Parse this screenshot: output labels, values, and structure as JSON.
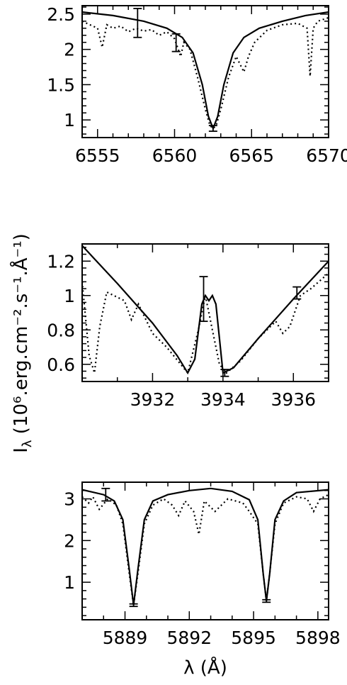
{
  "ylabel_shared": "Iλ (10⁶.erg.cm⁻².s⁻¹.Å⁻¹)",
  "chart_data": [
    {
      "type": "line",
      "title": "",
      "xlabel": "",
      "ylabel": "",
      "xlim": [
        6554,
        6570
      ],
      "ylim": [
        0.75,
        2.62
      ],
      "xticks": [
        6555,
        6560,
        6565,
        6570
      ],
      "yticks": [
        1,
        1.5,
        2,
        2.5
      ],
      "xtick_labels": [
        "6555",
        "6560",
        "6565",
        "6570"
      ],
      "ytick_labels": [
        "1",
        "1.5",
        "2",
        "2.5"
      ],
      "series": [
        {
          "style": "solid",
          "x": [
            6554,
            6556,
            6558,
            6559.5,
            6560.5,
            6561.2,
            6561.8,
            6562.2,
            6562.5,
            6562.8,
            6563.2,
            6563.8,
            6564.5,
            6565.5,
            6567,
            6568.5,
            6570
          ],
          "y": [
            2.53,
            2.48,
            2.4,
            2.3,
            2.17,
            1.95,
            1.5,
            1.05,
            0.88,
            1.05,
            1.5,
            1.95,
            2.17,
            2.3,
            2.4,
            2.48,
            2.53
          ]
        },
        {
          "style": "dotted",
          "x": [
            6554,
            6554.5,
            6555,
            6555.3,
            6555.6,
            6556,
            6556.5,
            6557,
            6557.5,
            6558,
            6558.5,
            6559,
            6559.5,
            6560,
            6560.4,
            6560.6,
            6561,
            6561.5,
            6562,
            6562.3,
            6562.5,
            6562.7,
            6563,
            6563.5,
            6564,
            6564.5,
            6564.8,
            6565.2,
            6566,
            6567,
            6568,
            6568.6,
            6568.8,
            6569,
            6569.3,
            6570
          ],
          "y": [
            2.4,
            2.35,
            2.3,
            2.03,
            2.35,
            2.3,
            2.33,
            2.25,
            2.3,
            2.26,
            2.28,
            2.2,
            2.25,
            2.15,
            1.9,
            2.1,
            2.0,
            1.6,
            1.15,
            0.92,
            0.88,
            0.92,
            1.15,
            1.6,
            1.9,
            1.68,
            1.9,
            2.1,
            2.27,
            2.35,
            2.37,
            2.3,
            1.62,
            2.3,
            2.4,
            2.45
          ]
        }
      ],
      "errorbars": [
        {
          "x": 6557.6,
          "y": 2.37,
          "low": 2.17,
          "high": 2.58
        },
        {
          "x": 6560.1,
          "y": 2.1,
          "low": 1.97,
          "high": 2.22
        },
        {
          "x": 6562.5,
          "y": 0.88,
          "low": 0.84,
          "high": 0.92
        }
      ]
    },
    {
      "type": "line",
      "title": "",
      "xlabel": "",
      "ylabel": "",
      "xlim": [
        3930,
        3937
      ],
      "ylim": [
        0.5,
        1.3
      ],
      "xticks": [
        3932,
        3934,
        3936
      ],
      "yticks": [
        0.6,
        0.8,
        1,
        1.2
      ],
      "xtick_labels": [
        "3932",
        "3934",
        "3936"
      ],
      "ytick_labels": [
        "0.6",
        "0.8",
        "1",
        "1.2"
      ],
      "series": [
        {
          "style": "solid",
          "x": [
            3930,
            3931,
            3932,
            3932.7,
            3933.0,
            3933.2,
            3933.4,
            3933.5,
            3933.6,
            3933.7,
            3933.8,
            3934.0,
            3934.3,
            3935,
            3936,
            3937
          ],
          "y": [
            1.29,
            1.07,
            0.84,
            0.65,
            0.55,
            0.63,
            0.95,
            1.0,
            0.97,
            1.0,
            0.95,
            0.55,
            0.58,
            0.75,
            0.98,
            1.2
          ],
          "note_unused": ""
        },
        {
          "style": "dotted",
          "x": [
            3930,
            3930.2,
            3930.35,
            3930.5,
            3930.7,
            3930.9,
            3931.2,
            3931.4,
            3931.6,
            3932,
            3932.4,
            3932.8,
            3933.0,
            3933.3,
            3933.5,
            3933.7,
            3933.9,
            3934.1,
            3934.5,
            3935,
            3935.5,
            3935.7,
            3935.9,
            3936.2,
            3936.5,
            3937
          ],
          "y": [
            1.08,
            0.65,
            0.55,
            0.82,
            1.02,
            1.0,
            0.97,
            0.86,
            0.95,
            0.78,
            0.7,
            0.6,
            0.55,
            0.8,
            1.0,
            0.8,
            0.6,
            0.55,
            0.62,
            0.75,
            0.85,
            0.78,
            0.82,
            1.0,
            1.04,
            1.13
          ]
        }
      ],
      "errorbars": [
        {
          "x": 3933.45,
          "y": 0.98,
          "low": 0.85,
          "high": 1.11
        },
        {
          "x": 3934.05,
          "y": 0.55,
          "low": 0.53,
          "high": 0.57
        },
        {
          "x": 3936.1,
          "y": 1.01,
          "low": 0.98,
          "high": 1.05
        }
      ]
    },
    {
      "type": "line",
      "title": "",
      "xlabel": "λ (Å)",
      "ylabel": "",
      "xlim": [
        5887,
        5898.5
      ],
      "ylim": [
        0.1,
        3.4
      ],
      "xticks": [
        5889,
        5892,
        5895,
        5898
      ],
      "yticks": [
        1,
        2,
        3
      ],
      "xtick_labels": [
        "5889",
        "5892",
        "5895",
        "5898"
      ],
      "ytick_labels": [
        "1",
        "2",
        "3"
      ],
      "series": [
        {
          "style": "solid",
          "x": [
            5887,
            5888,
            5888.5,
            5888.9,
            5889.2,
            5889.4,
            5889.6,
            5889.9,
            5890.3,
            5891,
            5892,
            5893,
            5894,
            5894.8,
            5895.2,
            5895.45,
            5895.6,
            5895.75,
            5896,
            5896.4,
            5897,
            5898.5
          ],
          "y": [
            3.22,
            3.1,
            2.95,
            2.5,
            1.3,
            0.45,
            1.3,
            2.5,
            2.95,
            3.1,
            3.2,
            3.25,
            3.18,
            2.98,
            2.5,
            1.2,
            0.55,
            1.2,
            2.5,
            2.95,
            3.15,
            3.22
          ],
          "note_unused": ""
        },
        {
          "style": "dotted",
          "x": [
            5887,
            5887.3,
            5887.5,
            5887.8,
            5888.2,
            5888.6,
            5888.9,
            5889.2,
            5889.4,
            5889.6,
            5889.9,
            5890.3,
            5890.8,
            5891.2,
            5891.5,
            5891.8,
            5892.2,
            5892.45,
            5892.7,
            5893.2,
            5893.8,
            5894.5,
            5894.8,
            5895.2,
            5895.45,
            5895.6,
            5895.75,
            5896,
            5896.4,
            5897,
            5897.5,
            5897.8,
            5898.1,
            5898.5
          ],
          "y": [
            3.05,
            2.9,
            3.05,
            2.75,
            3.0,
            2.85,
            2.4,
            1.2,
            0.45,
            1.2,
            2.4,
            2.85,
            3.0,
            2.85,
            2.6,
            2.95,
            2.7,
            2.15,
            2.95,
            2.7,
            3.0,
            2.9,
            2.7,
            2.4,
            1.2,
            0.55,
            1.2,
            2.4,
            2.9,
            3.05,
            3.0,
            2.7,
            3.0,
            3.1
          ]
        }
      ],
      "errorbars": [
        {
          "x": 5888.1,
          "y": 3.1,
          "low": 2.95,
          "high": 3.25
        },
        {
          "x": 5889.4,
          "y": 0.45,
          "low": 0.42,
          "high": 0.48
        },
        {
          "x": 5895.6,
          "y": 0.55,
          "low": 0.52,
          "high": 0.58
        }
      ]
    }
  ]
}
